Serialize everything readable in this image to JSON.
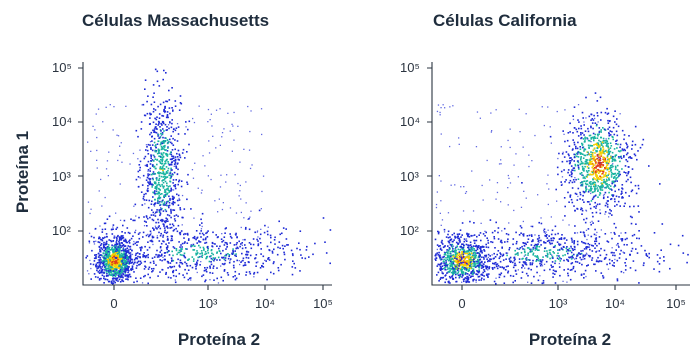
{
  "chart_data": [
    {
      "type": "scatter",
      "title": "Células Massachusetts",
      "xlabel": "Proteína 2",
      "ylabel": "Proteína 1",
      "x_scale": "biexponential",
      "y_scale": "log",
      "x_tick_labels": [
        "0",
        "10³",
        "10⁴",
        "10⁵"
      ],
      "y_tick_labels": [
        "10²",
        "10³",
        "10⁴",
        "10⁵"
      ],
      "density_coloring": true,
      "populations": [
        {
          "description": "double-negative",
          "x_center": 0,
          "y_center": 30,
          "relative_density": "highest"
        },
        {
          "description": "Proteína 1 positive",
          "x_center": 100,
          "y_center": 800,
          "relative_density": "medium"
        },
        {
          "description": "Proteína 2 low spread",
          "x_center": 1000,
          "y_center": 40,
          "relative_density": "low"
        }
      ]
    },
    {
      "type": "scatter",
      "title": "Células California",
      "xlabel": "Proteína 2",
      "ylabel": "",
      "x_scale": "biexponential",
      "y_scale": "log",
      "x_tick_labels": [
        "0",
        "10³",
        "10⁴",
        "10⁵"
      ],
      "y_tick_labels": [
        "10²",
        "10³",
        "10⁴",
        "10⁵"
      ],
      "density_coloring": true,
      "populations": [
        {
          "description": "double-negative",
          "x_center": 0,
          "y_center": 30,
          "relative_density": "high"
        },
        {
          "description": "double-positive",
          "x_center": 5000,
          "y_center": 1200,
          "relative_density": "high"
        },
        {
          "description": "Proteína 2 intermediate",
          "x_center": 1000,
          "y_center": 40,
          "relative_density": "medium"
        }
      ]
    }
  ],
  "colors": {
    "text": "#1f2d3d",
    "axis": "#2b3440",
    "density_low": "#1f2bd6",
    "density_mid": "#18b3a0",
    "density_high": "#f5d000",
    "density_peak": "#e03a1a"
  }
}
